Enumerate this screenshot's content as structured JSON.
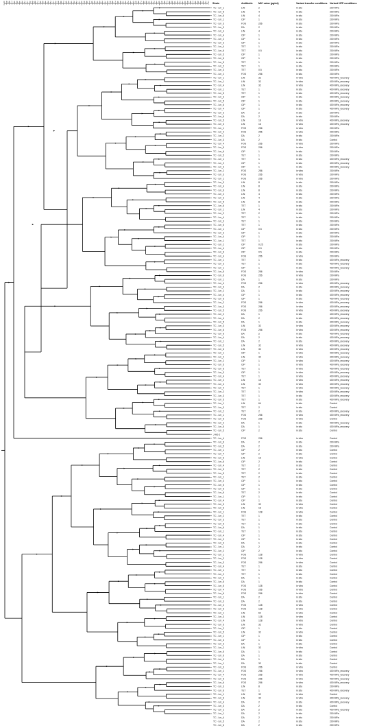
{
  "columns": {
    "strain": "Strain",
    "antibiotic": "Antibiotic",
    "mic": "MIC value (µg/ml)",
    "transfer": "Variant transfer conditions",
    "hpp": "Variant HPP conditions"
  },
  "scale_ticks": [
    "0",
    "9",
    "8",
    "7",
    "6",
    "5",
    "4",
    "3",
    "2",
    "1",
    "0",
    "9",
    "8",
    "7",
    "6",
    "5",
    "4",
    "3",
    "2",
    "1",
    "0",
    "9",
    "8",
    "7",
    "6",
    "5",
    "4",
    "3",
    "2",
    "1",
    "0",
    "9",
    "8",
    "7",
    "6",
    "5",
    "4",
    "3",
    "2",
    "1",
    "0",
    "9",
    "8",
    "7",
    "6",
    "5",
    "4",
    "3",
    "2",
    "1",
    "0",
    "9",
    "8",
    "7",
    "6",
    "5",
    "4",
    "3",
    "2",
    "1",
    "0",
    "9",
    "8",
    "7",
    "6",
    "5",
    "4",
    "3",
    "2",
    "1",
    "0",
    "9",
    "8",
    "7",
    "6",
    "5",
    "4",
    "3",
    "2",
    "1"
  ],
  "rows": [
    [
      "TC - Lm_1",
      "LIN",
      "2",
      "in situ",
      "200 MPa"
    ],
    [
      "TC - Lm_5",
      "LIN",
      "4",
      "in situ",
      "200 MPa"
    ],
    [
      "TC - Lm_6",
      "LIN",
      "4",
      "in situ",
      "200 MPa"
    ],
    [
      "TC - Lm_1",
      "CIP",
      "1",
      "in situ",
      "200 MPa"
    ],
    [
      "TC - Lm_3",
      "FOS",
      "256",
      "in situ",
      "200 MPa"
    ],
    [
      "TC - Lm_3",
      "DA",
      "2",
      "in situ",
      "200 MPa"
    ],
    [
      "TC - Lm_4",
      "LIN",
      "4",
      "in situ",
      "200 MPa"
    ],
    [
      "TC - Lm_4",
      "CIP",
      "1",
      "in situ",
      "200 MPa"
    ],
    [
      "TC - Lm_2",
      "CIP",
      "1",
      "in situ",
      "200 MPa"
    ],
    [
      "TC - Lm_3",
      "CIP",
      "1",
      "in situ",
      "200 MPa"
    ],
    [
      "TC - Lm_4",
      "TET",
      "1",
      "in situ",
      "200 MPa"
    ],
    [
      "TC - Lm_6",
      "TET",
      "0.5",
      "in situ",
      "200 MPa"
    ],
    [
      "TC - Lm_5",
      "CIP",
      "1",
      "in situ",
      "200 MPa"
    ],
    [
      "TC - Lm_6",
      "CIP",
      "1",
      "in situ",
      "200 MPa"
    ],
    [
      "TC - Lm_5",
      "TET",
      "1",
      "in situ",
      "200 MPa"
    ],
    [
      "TC - Lm_2",
      "TET",
      "1",
      "in situ",
      "200 MPa"
    ],
    [
      "TC - Lm_3",
      "TET",
      "0.5",
      "in situ",
      "200 MPa"
    ],
    [
      "TC - Lm_2",
      "FOS",
      "256",
      "in situ",
      "200 MPa"
    ],
    [
      "TC - Lm_1",
      "LIN",
      "32",
      "in vitro",
      "400 MPa_recovery"
    ],
    [
      "TC - Lm_1",
      "LIN",
      "32",
      "in vitro",
      "400 MPa_recovery"
    ],
    [
      "TC - Lm_4",
      "LIN",
      "32",
      "in vitro",
      "400 MPa_recovery"
    ],
    [
      "TC - Lm_1",
      "TET",
      "1",
      "in situ",
      "400 MPa_recovery"
    ],
    [
      "TC - Lm_5",
      "TET",
      "1",
      "in situ",
      "400 MPa_recovery"
    ],
    [
      "TC - Lm_3",
      "CIP",
      "1",
      "in situ",
      "400 MPa_recovery"
    ],
    [
      "TC - Lm_5",
      "CIP",
      "1",
      "in situ",
      "400 MPa_recovery"
    ],
    [
      "TC - Lm_6",
      "CIP",
      "1",
      "in situ",
      "400 MPa_recovery"
    ],
    [
      "TC - Lm_4",
      "CIP",
      "1",
      "in situ",
      "400 MPa_recovery"
    ],
    [
      "TC - Lm_3",
      "DA",
      "2",
      "in situ",
      "200 MPa"
    ],
    [
      "TC - Lm_6",
      "DA",
      "2",
      "in situ",
      "200 MPa"
    ],
    [
      "TC - Lm_5",
      "LIN",
      "16",
      "in vitro",
      "400 MPa_recovery"
    ],
    [
      "TC - Lm_3",
      "LIN",
      "16",
      "in vitro",
      "400 MPa_recovery"
    ],
    [
      "TC - Lm_1",
      "FOS",
      "256",
      "in vitro",
      "200 MPa"
    ],
    [
      "TC - Lm_2",
      "FOS",
      "256",
      "in vitro",
      "200 MPa"
    ],
    [
      "TC - Lm_2",
      "DA",
      "2",
      "in situ",
      "200 MPa"
    ],
    [
      "TC - Lm_3",
      "DA",
      "2",
      "in situ",
      "Control"
    ],
    [
      "TC - Lm_4",
      "FOS",
      "256",
      "in vitro",
      "200 MPa"
    ],
    [
      "TC - Lm_5",
      "FOS",
      "256",
      "in vitro",
      "200 MPa"
    ],
    [
      "TC - Lm_6",
      "CIP",
      "1",
      "in situ",
      "200 MPa"
    ],
    [
      "TC - Lm_5",
      "TET",
      "1",
      "in situ",
      "200 MPa"
    ],
    [
      "TC - Lm_1",
      "TET",
      "1",
      "in situ",
      "400 MPa_recovery"
    ],
    [
      "TC - Lm_2",
      "CIP",
      "1",
      "in situ",
      "400 MPa_recovery"
    ],
    [
      "TC - Lm_3",
      "CIP",
      "1",
      "in situ",
      "400 MPa_recovery"
    ],
    [
      "TC - Lm_2",
      "FOS",
      "256",
      "in vitro",
      "200 MPa"
    ],
    [
      "TC - Lm_3",
      "FOS",
      "256",
      "in vitro",
      "200 MPa"
    ],
    [
      "TC - Lm_1",
      "FOS",
      "256",
      "in vitro",
      "200 MPa"
    ],
    [
      "TC - Lm_3",
      "LIN",
      "8",
      "in situ",
      "200 MPa"
    ],
    [
      "TC - Lm_4",
      "LIN",
      "8",
      "in situ",
      "200 MPa"
    ],
    [
      "TC - Lm_6",
      "LIN",
      "8",
      "in situ",
      "200 MPa"
    ],
    [
      "TC - Lm_2",
      "LIN",
      "4",
      "in situ",
      "200 MPa"
    ],
    [
      "TC - Lm_3",
      "LIN",
      "4",
      "in situ",
      "200 MPa"
    ],
    [
      "TC - Lm_5",
      "LIN",
      "8",
      "in situ",
      "200 MPa"
    ],
    [
      "TC - Lm_6",
      "TET",
      "1",
      "in situ",
      "200 MPa"
    ],
    [
      "TC - Lm_1",
      "LIN",
      "4",
      "in situ",
      "200 MPa"
    ],
    [
      "TC - Lm_2",
      "TET",
      "2",
      "in situ",
      "200 MPa"
    ],
    [
      "TC - Lm_4",
      "TET",
      "1",
      "in situ",
      "200 MPa"
    ],
    [
      "TC - Lm_3",
      "TET",
      "1",
      "in situ",
      "200 MPa"
    ],
    [
      "TC - Lm_5",
      "TET",
      "1",
      "in situ",
      "200 MPa"
    ],
    [
      "TC - Lm_1",
      "CIP",
      "0.5",
      "in situ",
      "200 MPa"
    ],
    [
      "TC - Lm_3",
      "CIP",
      "1",
      "in situ",
      "200 MPa"
    ],
    [
      "TC - Lm_4",
      "CIP",
      "1",
      "in situ",
      "200 MPa"
    ],
    [
      "TC - Lm_1",
      "TET",
      "1",
      "in situ",
      "200 MPa"
    ],
    [
      "TC - Lm_2",
      "CIP",
      "0.25",
      "in situ",
      "200 MPa"
    ],
    [
      "TC - Lm_4",
      "CIP",
      "0.5",
      "in situ",
      "200 MPa"
    ],
    [
      "TC - Lm_6",
      "CIP",
      "0.5",
      "in situ",
      "200 MPa"
    ],
    [
      "TC - Lm_4",
      "FOS",
      "256",
      "in vitro",
      "200 MPa"
    ],
    [
      "TC - Lm_1",
      "TET",
      "1",
      "in situ",
      "400 MPa_recovery"
    ],
    [
      "TC - Lm_3",
      "TET",
      "1",
      "in situ",
      "400 MPa_recovery"
    ],
    [
      "TC - Lm_1",
      "CIP",
      "1",
      "in situ",
      "400 MPa_recovery"
    ],
    [
      "TC - Lm_5",
      "FOS",
      "256",
      "in vitro",
      "200 MPa"
    ],
    [
      "TC - Lm_6",
      "FOS",
      "256",
      "in vitro",
      "200 MPa"
    ],
    [
      "TC - Lm_1",
      "DA",
      "1",
      "in situ",
      "200 MPa"
    ],
    [
      "TC - Lm_4",
      "FOS",
      "256",
      "in vitro",
      "400 MPa_recovery"
    ],
    [
      "TC - Lm_3",
      "DA",
      "2",
      "in situ",
      "400 MPa_recovery"
    ],
    [
      "TC - Lm_2",
      "DA",
      "1",
      "in situ",
      "400 MPa_recovery"
    ],
    [
      "TC - Lm_4",
      "CIP",
      "1",
      "in situ",
      "400 MPa_recovery"
    ],
    [
      "TC - Lm_6",
      "CIP",
      "1",
      "in situ",
      "400 MPa_recovery"
    ],
    [
      "TC - Lm_2",
      "FOS",
      "256",
      "in vitro",
      "400 MPa_recovery"
    ],
    [
      "TC - Lm_3",
      "FOS",
      "256",
      "in vitro",
      "400 MPa_recovery"
    ],
    [
      "TC - Lm_5",
      "FOS",
      "256",
      "in vitro",
      "400 MPa_recovery"
    ],
    [
      "TC - Lm_2",
      "DA",
      "1",
      "in situ",
      "400 MPa_recovery"
    ],
    [
      "TC - Lm_4",
      "DA",
      "2",
      "in situ",
      "400 MPa_recovery"
    ],
    [
      "TC - Lm_5",
      "DA",
      "1",
      "in situ",
      "400 MPa_recovery"
    ],
    [
      "TC - Lm_3",
      "LIN",
      "32",
      "in vitro",
      "400 MPa_recovery"
    ],
    [
      "TC - Lm_6",
      "FOS",
      "256",
      "in vitro",
      "400 MPa_recovery"
    ],
    [
      "TC - Lm_6",
      "DA",
      "2",
      "in situ",
      "400 MPa_recovery"
    ],
    [
      "TC - Lm_4",
      "DA",
      "2",
      "in situ",
      "400 MPa_recovery"
    ],
    [
      "TC - Lm_1",
      "DA",
      "2",
      "in situ",
      "400 MPa_recovery"
    ],
    [
      "TC - Lm_5",
      "LIN",
      "32",
      "in vitro",
      "400 MPa_recovery"
    ],
    [
      "TC - Lm_6",
      "LIN",
      "32",
      "in vitro",
      "400 MPa_recovery"
    ],
    [
      "TC - Lm_1",
      "CIP",
      "1",
      "in vitro",
      "400 MPa_recovery"
    ],
    [
      "TC - Lm_2",
      "LIN",
      "32",
      "in vitro",
      "400 MPa_recovery"
    ],
    [
      "TC - Lm_2",
      "CIP",
      "1",
      "in vitro",
      "400 MPa_recovery"
    ],
    [
      "TC - Lm_5",
      "CIP",
      "1",
      "in vitro",
      "400 MPa_recovery"
    ],
    [
      "TC - Lm_6",
      "TET",
      "1",
      "in vitro",
      "400 MPa_recovery"
    ],
    [
      "TC - Lm_3",
      "CIP",
      "1",
      "in vitro",
      "400 MPa_recovery"
    ],
    [
      "TC - Lm_4",
      "TET",
      "1",
      "in vitro",
      "400 MPa_recovery"
    ],
    [
      "TC - Lm_2",
      "LIN",
      "16",
      "in vitro",
      "400 MPa_recovery"
    ],
    [
      "TC - Lm_4",
      "LIN",
      "32",
      "in vitro",
      "400 MPa_recovery"
    ],
    [
      "TC - Lm_4",
      "TET",
      "1",
      "in vitro",
      "400 MPa_recovery"
    ],
    [
      "TC - Lm_2",
      "TET",
      "1",
      "in vitro",
      "400 MPa_recovery"
    ],
    [
      "TC - Lm_3",
      "TET",
      "1",
      "in situ",
      "400 MPa_recovery"
    ],
    [
      "TC - Lm_5",
      "TET",
      "1",
      "in situ",
      "400 MPa_recovery"
    ],
    [
      "TC - Lm_1",
      "LIN",
      "64",
      "in situ",
      "Control"
    ],
    [
      "TC - Lm_3",
      "TET",
      "2",
      "in situ",
      "Control"
    ],
    [
      "TC - Lm_2",
      "TET",
      "2",
      "in situ",
      "400 MPa_recovery"
    ],
    [
      "TC - Lm_1",
      "FOS",
      "256",
      "in vitro",
      "400 MPa_recovery"
    ],
    [
      "TC - Lm_5",
      "FOS",
      "256",
      "in vitro",
      "Control"
    ],
    [
      "TC - Lm_2",
      "DA",
      "1",
      "in situ",
      "400 MPa_recovery"
    ],
    [
      "TC - Lm_5",
      "DA",
      "1",
      "in situ",
      "400 MPa_recovery"
    ],
    [
      "TC - Lm_5",
      "CIP",
      "2",
      "in situ",
      "Control"
    ],
    [
      "J-H2-2",
      "",
      "",
      "",
      ""
    ],
    [
      "TC - Lm_4",
      "FOS",
      "256",
      "in vitro",
      "Control"
    ],
    [
      "TC - Lm_6",
      "DA",
      "2",
      "in situ",
      "200 MPa"
    ],
    [
      "TC - Lm_5",
      "DA",
      "2",
      "in situ",
      "200 MPa"
    ],
    [
      "TC - Lm_1",
      "CIP",
      "2",
      "in situ",
      "Control"
    ],
    [
      "TC - Lm_4",
      "CIP",
      "2",
      "in situ",
      "Control"
    ],
    [
      "TC - Lm_6",
      "LIN",
      "16",
      "in vitro",
      "Control"
    ],
    [
      "TC - Lm_6",
      "CIP",
      "2",
      "in situ",
      "Control"
    ],
    [
      "TC - Lm_4",
      "TET",
      "2",
      "in situ",
      "Control"
    ],
    [
      "TC - Lm_3",
      "TET",
      "2",
      "in situ",
      "Control"
    ],
    [
      "TC - Lm_5",
      "TET",
      "2",
      "in situ",
      "Control"
    ],
    [
      "TC - Lm_1",
      "TET",
      "2",
      "in situ",
      "Control"
    ],
    [
      "TC - Lm_3",
      "CIP",
      "1",
      "in situ",
      "Control"
    ],
    [
      "TC - Lm_5",
      "CIP",
      "1",
      "in situ",
      "Control"
    ],
    [
      "TC - Lm_6",
      "CIP",
      "1",
      "in situ",
      "Control"
    ],
    [
      "TC - Lm_6",
      "TET",
      "2",
      "in situ",
      "Control"
    ],
    [
      "TC - Lm_1",
      "CIP",
      "1",
      "in situ",
      "Control"
    ],
    [
      "TC - Lm_4",
      "CIP",
      "1",
      "in situ",
      "Control"
    ],
    [
      "TC - Lm_3",
      "LIN",
      "32",
      "in vitro",
      "Control"
    ],
    [
      "TC - Lm_6",
      "LIN",
      "16",
      "in vitro",
      "Control"
    ],
    [
      "TC - Lm_1",
      "FOS",
      "128",
      "in vitro",
      "Control"
    ],
    [
      "TC - Lm_2",
      "TET",
      "1",
      "in situ",
      "Control"
    ],
    [
      "TC - Lm_3",
      "TET",
      "1",
      "in situ",
      "Control"
    ],
    [
      "TC - Lm_5",
      "TET",
      "1",
      "in situ",
      "Control"
    ],
    [
      "TC - Lm_6",
      "DA",
      "1",
      "in situ",
      "Control"
    ],
    [
      "TC - Lm_1",
      "TET",
      "1",
      "in situ",
      "Control"
    ],
    [
      "TC - Lm_4",
      "CIP",
      "1",
      "in situ",
      "Control"
    ],
    [
      "TC - Lm_2",
      "CIP",
      "1",
      "in situ",
      "Control"
    ],
    [
      "TC - Lm_3",
      "DA",
      "1",
      "in situ",
      "Control"
    ],
    [
      "TC - Lm_1",
      "DA",
      "2",
      "in situ",
      "Control"
    ],
    [
      "TC - Lm_2",
      "CIP",
      "2",
      "in situ",
      "Control"
    ],
    [
      "TC - Lm_1",
      "FOS",
      "128",
      "in vitro",
      "Control"
    ],
    [
      "TC - Lm_2",
      "FOS",
      "128",
      "in vitro",
      "Control"
    ],
    [
      "TC - Lm_3",
      "FOS",
      "256",
      "in vitro",
      "Control"
    ],
    [
      "TC - Lm_4",
      "TET",
      "1",
      "in situ",
      "Control"
    ],
    [
      "TC - Lm_1",
      "TET",
      "1",
      "in situ",
      "Control"
    ],
    [
      "TC - Lm_2",
      "TET",
      "1",
      "in situ",
      "Control"
    ],
    [
      "TC - Lm_4",
      "DA",
      "1",
      "in situ",
      "Control"
    ],
    [
      "TC - Lm_5",
      "DA",
      "1",
      "in situ",
      "Control"
    ],
    [
      "TC - Lm_5",
      "FOS",
      "128",
      "in vitro",
      "Control"
    ],
    [
      "TC - Lm_4",
      "FOS",
      "256",
      "in vitro",
      "Control"
    ],
    [
      "TC - Lm_6",
      "FOS",
      "256",
      "in vitro",
      "Control"
    ],
    [
      "TC - Lm_1",
      "DA",
      "2",
      "in situ",
      "Control"
    ],
    [
      "TC - Lm_3",
      "DA",
      "2",
      "in situ",
      "Control"
    ],
    [
      "TC - Lm_2",
      "FOS",
      "128",
      "in vitro",
      "Control"
    ],
    [
      "TC - Lm_6",
      "FOS",
      "128",
      "in vitro",
      "Control"
    ],
    [
      "TC - Lm_1",
      "LIN",
      "64",
      "in vitro",
      "Control"
    ],
    [
      "TC - Lm_3",
      "LIN",
      "128",
      "in vitro",
      "Control"
    ],
    [
      "TC - Lm_4",
      "LIN",
      "128",
      "in vitro",
      "Control"
    ],
    [
      "TC - Lm_5",
      "LIN",
      "32",
      "in vitro",
      "Control"
    ],
    [
      "TC - Lm_2",
      "CIP",
      "1",
      "in situ",
      "Control"
    ],
    [
      "TC - Lm_5",
      "LIN",
      "32",
      "in vitro",
      "Control"
    ],
    [
      "TC - Lm_1",
      "CIP",
      "1",
      "in situ",
      "Control"
    ],
    [
      "TC - Lm_3",
      "CIP",
      "1",
      "in situ",
      "Control"
    ],
    [
      "TC - Lm_3",
      "DA",
      "1",
      "in situ",
      "Control"
    ],
    [
      "TC - Lm_2",
      "LIN",
      "32",
      "in vitro",
      "Control"
    ],
    [
      "TC - Lm_5",
      "DA",
      "1",
      "in situ",
      "Control"
    ],
    [
      "TC - Lm_6",
      "DA",
      "1",
      "in situ",
      "Control"
    ],
    [
      "TC - Lm_4",
      "DA",
      "1",
      "in situ",
      "Control"
    ],
    [
      "TC - Lm_1",
      "DA",
      "32",
      "in situ",
      "Control"
    ],
    [
      "TC - Lm_3",
      "FOS",
      "256",
      "in vitro",
      "Control"
    ],
    [
      "TC - Lm_2",
      "FOS",
      "256",
      "in vitro",
      "400 MPa_recovery"
    ],
    [
      "TC - Lm_4",
      "FOS",
      "256",
      "in vitro",
      "400 MPa_recovery"
    ],
    [
      "TC - Lm_5",
      "FOS",
      "256",
      "in vitro",
      "400 MPa_recovery"
    ],
    [
      "TC - Lm_6",
      "FOS",
      "256",
      "in vitro",
      "400 MPa_recovery"
    ],
    [
      "TC - Lm_3",
      "LIN",
      "8",
      "in situ",
      "200 MPa"
    ],
    [
      "TC - Lm_6",
      "TET",
      "1",
      "in situ",
      "400 MPa_recovery"
    ],
    [
      "TC - Lm_1",
      "LIN",
      "32",
      "in vitro",
      "Control"
    ],
    [
      "TC - Lm_6",
      "LIN",
      "32",
      "in vitro",
      "400 MPa_recovery"
    ],
    [
      "TC - Lm_4",
      "DA",
      "2",
      "in situ",
      "400 MPa_recovery"
    ],
    [
      "TC - Lm_3",
      "DA",
      "2",
      "in situ",
      "Control"
    ],
    [
      "TC - Lm_2",
      "DA",
      "2",
      "in situ",
      "400 MPa_recovery"
    ],
    [
      "TC - Lm_1",
      "DA",
      "2",
      "in situ",
      "200 MPa"
    ],
    [
      "TC - Lm_4",
      "DA",
      "2",
      "in situ",
      "200 MPa"
    ],
    [
      "TC - Lm_5",
      "DA",
      "2",
      "in situ",
      "200 MPa"
    ],
    [
      "TC - Lm_6",
      "DA",
      "2",
      "in situ",
      "200 MPa"
    ]
  ]
}
